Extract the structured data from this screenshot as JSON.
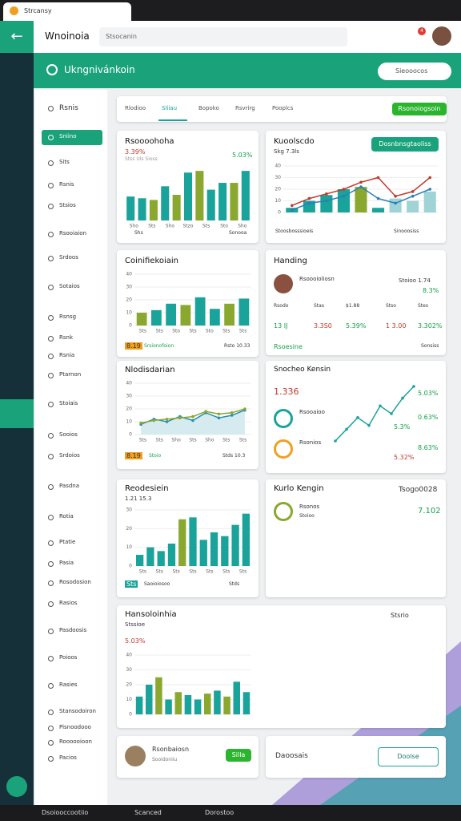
{
  "browser": {
    "tab_title": "Strcansy",
    "app_title": "Wnoinoia",
    "search_placeholder": "Stsocanin",
    "notification_count": "4"
  },
  "header": {
    "title": "Ukngnivánkoin",
    "search": "Sieooocos"
  },
  "sidebar": [
    "Rsnis",
    "Sniino",
    "Sits",
    "Rsnis",
    "Stsios",
    "Rsooiaion",
    "Srdoos",
    "Sotaios",
    "Rsnsg",
    "Rsnk",
    "Rsnia",
    "Ptarnon",
    "Stoiais",
    "Sooios",
    "Srdoios",
    "Pasdna",
    "Rotia",
    "Ptatie",
    "Pasia",
    "Rosodosion",
    "Rasios",
    "Pasdoosis",
    "Poioos",
    "Rasies",
    "Stansodoiron",
    "Pisnoodooo",
    "Roooooioon",
    "Pacios"
  ],
  "tabs": {
    "items": [
      "Rlodioo",
      "Sliiau",
      "Bopoko",
      "Rsvrirg",
      "Pooplcs"
    ],
    "button": "Rsonoiogsoin"
  },
  "card_a": {
    "title": "Rsoooohoha",
    "stat": "3.39%",
    "stat_right": "5.03%",
    "sub": "Stss Uls Sioss",
    "values": [
      14,
      13,
      12,
      20,
      15,
      28,
      29,
      18,
      22,
      22,
      29
    ],
    "colors": [
      "#1aa39a",
      "#1aa39a",
      "#8aa830",
      "#1aa39a",
      "#8aa830",
      "#1aa39a",
      "#8aa830",
      "#1aa39a",
      "#1aa39a",
      "#8aa830",
      "#1aa39a"
    ],
    "ylim": [
      0,
      30
    ],
    "xlabels": [
      "Sho",
      "Sts",
      "Sho",
      "Stzo",
      "Sts",
      "Sto",
      "Sho"
    ],
    "legend": [
      "Shs",
      "Sonooa"
    ]
  },
  "card_b": {
    "title": "Kuoolscdo",
    "sub": "Skg 7.3ls",
    "button": "Dosnbnsgtaoliss",
    "values": [
      4,
      10,
      15,
      20,
      22,
      4,
      12,
      10,
      18
    ],
    "colors": [
      "#1aa39a",
      "#1aa39a",
      "#1aa39a",
      "#1aa39a",
      "#8aa830",
      "#1aa39a",
      "#9fd3d6",
      "#9fd3d6",
      "#9fd3d6"
    ],
    "lines": [
      {
        "color": "#c0392b",
        "values": [
          6,
          12,
          16,
          20,
          26,
          30,
          14,
          18,
          30
        ]
      },
      {
        "color": "#2a7fb8",
        "values": [
          2,
          8,
          10,
          14,
          22,
          12,
          8,
          14,
          20
        ]
      }
    ],
    "ylim": [
      0,
      40
    ],
    "yticks": [
      0,
      10,
      20,
      30,
      40
    ],
    "legend": [
      "Stoosbosssioeis",
      "Sinooosiss"
    ]
  },
  "card_c": {
    "title": "Coinifiekoiain",
    "values": [
      10,
      12,
      17,
      16,
      22,
      13,
      17,
      21
    ],
    "colors": [
      "#8aa830",
      "#1aa39a",
      "#1aa39a",
      "#8aa830",
      "#1aa39a",
      "#1aa39a",
      "#8aa830",
      "#1aa39a"
    ],
    "ylim": [
      0,
      40
    ],
    "yticks": [
      0,
      10,
      20,
      30,
      40
    ],
    "xlabels": [
      "Sts",
      "Sts",
      "Sto",
      "Sts",
      "Sto",
      "Sts",
      "Sts"
    ],
    "badge": "8.19",
    "footer": "Srsionofoion",
    "footer_right": "Rsto 10.33"
  },
  "card_d": {
    "title": "Handing",
    "person": "Rsoooioliosn",
    "person_sub": "Stoioo 1.74",
    "person_stat": "8.3%",
    "labels": [
      "Rsodo",
      "Stas",
      "$1.88",
      "Stso",
      "Stes"
    ],
    "row": [
      "13 IJ",
      "3.3S0",
      "5.39%",
      "1 3.00",
      "3.302%"
    ],
    "footer": "Rsoesine",
    "footer_right": "Sonsiss"
  },
  "card_e": {
    "title": "Nlodisdarian",
    "values": [
      8,
      12,
      10,
      14,
      11,
      17,
      13,
      15,
      19
    ],
    "series2": [
      9,
      11,
      12,
      13,
      14,
      18,
      16,
      17,
      20
    ],
    "ylim": [
      0,
      40
    ],
    "yticks": [
      0,
      10,
      20,
      30,
      40
    ],
    "xlabels": [
      "Sts",
      "Sts",
      "Sho",
      "Sts",
      "Sho",
      "Sts",
      "Sts"
    ],
    "badge": "8.19",
    "footer": "Stoio",
    "footer_right": "Stds 10.3"
  },
  "card_f": {
    "title": "Snocheo Kensin",
    "stat": "1.336",
    "stat_right": "5.03%",
    "items": [
      "Rsooaioo",
      "Rsonios"
    ],
    "item_stats": [
      "0.63%",
      "8.63%"
    ],
    "item_stats2": [
      "5.3%",
      "5.32%"
    ],
    "values": [
      2,
      5,
      8,
      6,
      11,
      9,
      13,
      16
    ]
  },
  "card_g": {
    "title": "Reodesiein",
    "sub": "1.21 15.3",
    "values": [
      6,
      10,
      8,
      12,
      25,
      26,
      14,
      18,
      16,
      22,
      28
    ],
    "colors": [
      "#1aa39a",
      "#1aa39a",
      "#1aa39a",
      "#1aa39a",
      "#8aa830",
      "#1aa39a",
      "#1aa39a",
      "#1aa39a",
      "#1aa39a",
      "#1aa39a",
      "#1aa39a"
    ],
    "ylim": [
      0,
      30
    ],
    "yticks": [
      0,
      10,
      20,
      30
    ],
    "xlabels": [
      "Sts",
      "Sts",
      "Sts",
      "Sts",
      "Sts",
      "Sts",
      "Sts"
    ],
    "badge": "Sts",
    "footer": "Saoioiosoo",
    "footer_right": "Stds"
  },
  "card_h": {
    "title": "Kurlo Kengin",
    "right": "Tsogo0028",
    "item": "Rsonos",
    "item_sub": "Stoioo",
    "stat": "7.102"
  },
  "card_i": {
    "title": "Hansoloinhia",
    "sub": "Stssioe",
    "stat": "5.03%",
    "right": "Stsrio",
    "values": [
      12,
      20,
      25,
      10,
      15,
      13,
      10,
      14,
      16,
      12,
      22,
      15
    ],
    "colors": [
      "#1aa39a",
      "#1aa39a",
      "#8aa830",
      "#1aa39a",
      "#8aa830",
      "#1aa39a",
      "#1aa39a",
      "#8aa830",
      "#1aa39a",
      "#8aa830",
      "#1aa39a",
      "#1aa39a"
    ],
    "ylim": [
      0,
      40
    ],
    "yticks": [
      0,
      10,
      20,
      30,
      40
    ]
  },
  "card_j": {
    "title": "Rsonbaiosn",
    "sub": "Sooidoniiu",
    "button": "Silla"
  },
  "card_k": {
    "title": "Daoosais",
    "button": "Doolse"
  },
  "taskbar": [
    "Dsoiooccootiio",
    "Scanced",
    "Dorostoo"
  ]
}
